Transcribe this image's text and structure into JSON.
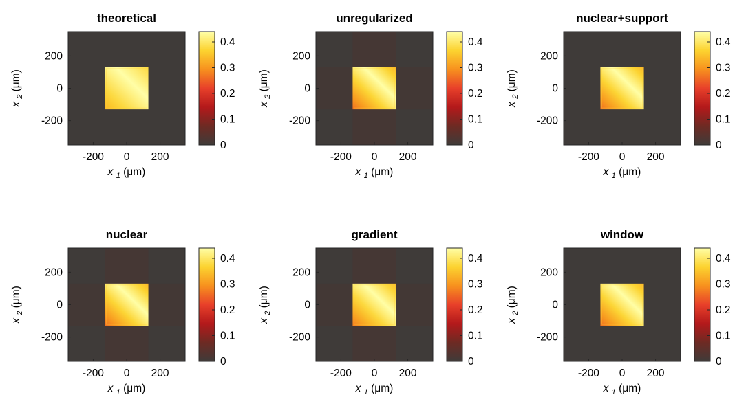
{
  "colors": {
    "background": "#3f3b39",
    "colormap": [
      "#3f3b39",
      "#6e2a23",
      "#b3191b",
      "#e8402a",
      "#f7911e",
      "#fcd330",
      "#ffffa8"
    ]
  },
  "common": {
    "xlabel": {
      "var": "x",
      "sub": "1",
      "unit": "(μm)"
    },
    "ylabel": {
      "var": "x",
      "sub": "2",
      "unit": "(μm)"
    },
    "colorbar_ticks": [
      "0",
      "0.1",
      "0.2",
      "0.3",
      "0.4"
    ]
  },
  "chart_data": [
    {
      "type": "heatmap",
      "title": "theoretical",
      "xlim": [
        -350,
        350
      ],
      "ylim": [
        -350,
        350
      ],
      "xticks": [
        -200,
        0,
        200
      ],
      "yticks": [
        -200,
        0,
        200
      ],
      "clim": [
        0,
        0.44
      ],
      "square": {
        "x": [
          -130,
          130
        ],
        "y": [
          -130,
          130
        ],
        "min": 0.3,
        "max": 0.44
      },
      "artifacts": 0
    },
    {
      "type": "heatmap",
      "title": "unregularized",
      "xlim": [
        -350,
        350
      ],
      "ylim": [
        -350,
        350
      ],
      "xticks": [
        -200,
        0,
        200
      ],
      "yticks": [
        -200,
        0,
        200
      ],
      "clim": [
        0,
        0.44
      ],
      "square": {
        "x": [
          -130,
          130
        ],
        "y": [
          -130,
          130
        ],
        "min": 0.2,
        "max": 0.44
      },
      "artifacts": 1
    },
    {
      "type": "heatmap",
      "title": "nuclear+support",
      "xlim": [
        -350,
        350
      ],
      "ylim": [
        -350,
        350
      ],
      "xticks": [
        -200,
        0,
        200
      ],
      "yticks": [
        -200,
        0,
        200
      ],
      "clim": [
        0,
        0.44
      ],
      "square": {
        "x": [
          -130,
          130
        ],
        "y": [
          -130,
          130
        ],
        "min": 0.2,
        "max": 0.44
      },
      "artifacts": 0
    },
    {
      "type": "heatmap",
      "title": "nuclear",
      "xlim": [
        -350,
        350
      ],
      "ylim": [
        -350,
        350
      ],
      "xticks": [
        -200,
        0,
        200
      ],
      "yticks": [
        -200,
        0,
        200
      ],
      "clim": [
        0,
        0.44
      ],
      "square": {
        "x": [
          -130,
          130
        ],
        "y": [
          -130,
          130
        ],
        "min": 0.2,
        "max": 0.44
      },
      "artifacts": 1
    },
    {
      "type": "heatmap",
      "title": "gradient",
      "xlim": [
        -350,
        350
      ],
      "ylim": [
        -350,
        350
      ],
      "xticks": [
        -200,
        0,
        200
      ],
      "yticks": [
        -200,
        0,
        200
      ],
      "clim": [
        0,
        0.44
      ],
      "square": {
        "x": [
          -130,
          130
        ],
        "y": [
          -130,
          130
        ],
        "min": 0.22,
        "max": 0.44
      },
      "artifacts": 1
    },
    {
      "type": "heatmap",
      "title": "window",
      "xlim": [
        -350,
        350
      ],
      "ylim": [
        -350,
        350
      ],
      "xticks": [
        -200,
        0,
        200
      ],
      "yticks": [
        -200,
        0,
        200
      ],
      "clim": [
        0,
        0.44
      ],
      "square": {
        "x": [
          -130,
          130
        ],
        "y": [
          -130,
          130
        ],
        "min": 0.2,
        "max": 0.44
      },
      "artifacts": 0
    }
  ]
}
